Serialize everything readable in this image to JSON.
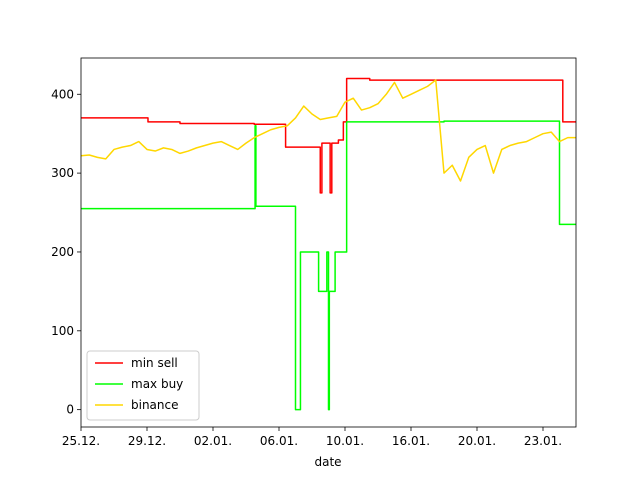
{
  "chart_data": {
    "type": "line",
    "x_label": "date",
    "xlim": [
      0,
      30
    ],
    "ylim": [
      -22,
      446
    ],
    "xticks": [
      {
        "value": 0,
        "label": "25.12."
      },
      {
        "value": 4,
        "label": "29.12."
      },
      {
        "value": 8,
        "label": "02.01."
      },
      {
        "value": 12,
        "label": "06.01."
      },
      {
        "value": 16,
        "label": "10.01."
      },
      {
        "value": 20,
        "label": "16.01."
      },
      {
        "value": 24,
        "label": "20.01."
      },
      {
        "value": 28,
        "label": "23.01."
      }
    ],
    "yticks": [
      0,
      100,
      200,
      300,
      400
    ],
    "legend": "lower left",
    "series": [
      {
        "name": "min sell",
        "color": "#ff0000",
        "x": [
          0,
          4.06,
          4.06,
          6,
          6,
          10.5,
          10.5,
          12.4,
          12.4,
          14.5,
          14.5,
          14.6,
          14.6,
          15.1,
          15.1,
          15.2,
          15.2,
          15.6,
          15.6,
          15.9,
          15.9,
          16.1,
          16.1,
          17.5,
          17.5,
          29.2,
          29.2,
          30
        ],
        "values": [
          370,
          370,
          365,
          365,
          363,
          363,
          362,
          362,
          333,
          333,
          275,
          275,
          338,
          338,
          275,
          275,
          338,
          338,
          342,
          342,
          365,
          365,
          420,
          420,
          418,
          418,
          365,
          365
        ]
      },
      {
        "name": "max buy",
        "color": "#00ff00",
        "x": [
          0,
          10.55,
          10.55,
          10.6,
          10.6,
          13.0,
          13.0,
          13.3,
          13.3,
          14.4,
          14.4,
          14.9,
          14.9,
          15.0,
          15.0,
          15.05,
          15.05,
          15.4,
          15.4,
          16.1,
          16.1,
          22,
          22,
          29.0,
          29.0,
          30
        ],
        "values": [
          255,
          255,
          360,
          360,
          258,
          258,
          0,
          0,
          200,
          200,
          150,
          150,
          200,
          200,
          0,
          0,
          150,
          150,
          200,
          200,
          365,
          365,
          366,
          366,
          235,
          235
        ]
      },
      {
        "name": "binance",
        "color": "#ffd700",
        "x": [
          0,
          0.5,
          1,
          1.5,
          2,
          2.5,
          3,
          3.5,
          4,
          4.5,
          5,
          5.5,
          6,
          6.5,
          7,
          7.5,
          8,
          8.5,
          9,
          9.5,
          10,
          10.5,
          11,
          11.5,
          12,
          12.5,
          13,
          13.5,
          14,
          14.5,
          15,
          15.5,
          16,
          16.5,
          17,
          17.5,
          18,
          18.5,
          19,
          19.5,
          20,
          20.5,
          21,
          21.5,
          22,
          22.5,
          23,
          23.5,
          24,
          24.5,
          25,
          25.5,
          26,
          26.5,
          27,
          27.5,
          28,
          28.5,
          29,
          29.5,
          30
        ],
        "values": [
          322,
          323,
          320,
          318,
          330,
          333,
          335,
          340,
          330,
          328,
          332,
          330,
          325,
          328,
          332,
          335,
          338,
          340,
          335,
          330,
          338,
          345,
          350,
          355,
          358,
          360,
          370,
          385,
          375,
          368,
          370,
          372,
          390,
          395,
          380,
          383,
          388,
          400,
          415,
          395,
          400,
          405,
          410,
          418,
          300,
          310,
          290,
          320,
          330,
          335,
          300,
          330,
          335,
          338,
          340,
          345,
          350,
          352,
          340,
          345,
          345
        ]
      }
    ]
  }
}
